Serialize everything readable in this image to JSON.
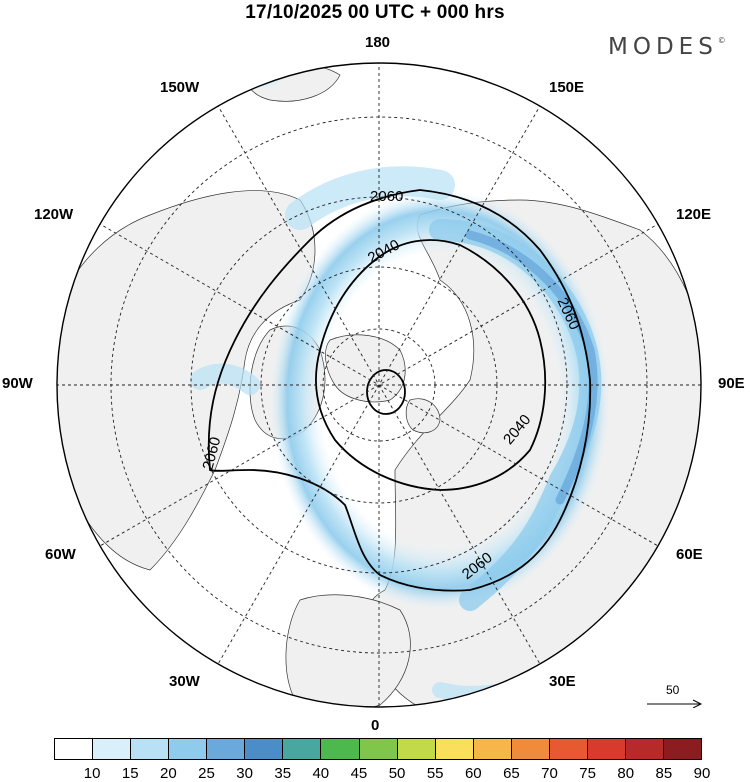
{
  "header": {
    "title": "17/10/2025  00 UTC  + 000 hrs",
    "brand": "MODES",
    "brand_mark": "©"
  },
  "map": {
    "projection": "north-polar-stereographic",
    "longitude_labels": [
      "180",
      "150E",
      "120E",
      "90E",
      "60E",
      "30E",
      "0",
      "30W",
      "60W",
      "90W",
      "120W",
      "150W"
    ],
    "contour_labels": [
      "2060",
      "2040",
      "2060",
      "2040",
      "2060",
      "2060"
    ],
    "wind_reference": {
      "value": "50"
    },
    "colors": {
      "land": "#f0f0f0",
      "ocean": "#ffffff",
      "contour": "#000000",
      "graticule": "#222222"
    }
  },
  "legend": {
    "ticks": [
      "10",
      "15",
      "20",
      "25",
      "30",
      "35",
      "40",
      "45",
      "50",
      "55",
      "60",
      "65",
      "70",
      "75",
      "80",
      "85",
      "90"
    ],
    "colors": [
      "#ffffff",
      "#d9f0fa",
      "#b8e1f5",
      "#8ecbec",
      "#6aa9dc",
      "#4b8dc8",
      "#48a79e",
      "#4db84b",
      "#7fc64a",
      "#c2d94a",
      "#f9df5b",
      "#f6b64a",
      "#ef8b3a",
      "#e75a31",
      "#d83a2c",
      "#b62a2a",
      "#8b1c1f"
    ]
  }
}
